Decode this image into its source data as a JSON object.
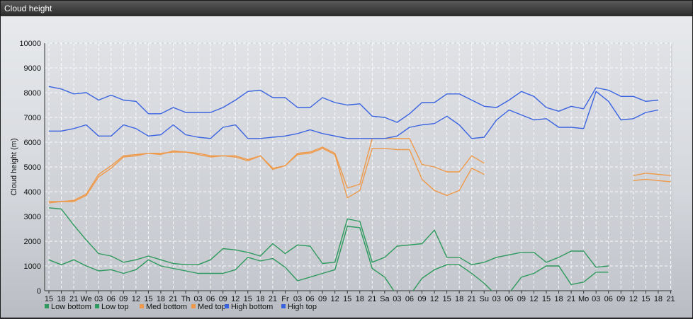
{
  "window": {
    "title": "Cloud height"
  },
  "colors": {
    "low": "#2e9a5d",
    "med": "#ef9a4a",
    "high": "#3a63e0"
  },
  "chart_data": {
    "type": "line",
    "title": "",
    "xlabel": "",
    "ylabel": "Cloud height (m)",
    "ylim": [
      0,
      10000
    ],
    "yticks": [
      0,
      1000,
      2000,
      3000,
      4000,
      5000,
      6000,
      7000,
      8000,
      9000,
      10000
    ],
    "xticklabels": [
      "15",
      "18",
      "21",
      "We",
      "03",
      "06",
      "09",
      "12",
      "15",
      "18",
      "21",
      "Th",
      "03",
      "06",
      "09",
      "12",
      "15",
      "18",
      "21",
      "Fr",
      "03",
      "06",
      "09",
      "12",
      "15",
      "18",
      "21",
      "Sa",
      "03",
      "06",
      "09",
      "12",
      "15",
      "18",
      "21",
      "Su",
      "03",
      "06",
      "09",
      "12",
      "15",
      "18",
      "21",
      "Mo",
      "03",
      "06",
      "09",
      "12",
      "15",
      "18",
      "21"
    ],
    "grid": true,
    "legend_position": "bottom",
    "series": [
      {
        "name": "Low bottom",
        "color": "#2e9a5d",
        "values": [
          1250,
          1050,
          1250,
          1000,
          800,
          850,
          700,
          850,
          1250,
          1000,
          900,
          800,
          700,
          700,
          700,
          850,
          1350,
          1200,
          1300,
          950,
          400,
          550,
          700,
          850,
          2600,
          2550,
          900,
          550,
          -200,
          -200,
          500,
          850,
          1050,
          1050,
          700,
          300,
          -200,
          -100,
          550,
          700,
          1000,
          1000,
          250,
          350,
          750,
          750,
          null,
          null,
          null,
          null,
          null
        ]
      },
      {
        "name": "Low top",
        "color": "#2e9a5d",
        "values": [
          3350,
          3300,
          2650,
          2050,
          1500,
          1400,
          1150,
          1250,
          1400,
          1250,
          1100,
          1050,
          1050,
          1250,
          1700,
          1650,
          1550,
          1400,
          1900,
          1500,
          1850,
          1800,
          1100,
          1150,
          2900,
          2800,
          1150,
          1350,
          1800,
          1850,
          1900,
          2450,
          1350,
          1350,
          1050,
          1150,
          1350,
          1450,
          1550,
          1550,
          1150,
          1350,
          1600,
          1600,
          950,
          1000,
          null,
          null,
          null,
          null,
          null
        ]
      },
      {
        "name": "Med bottom",
        "color": "#ef9a4a",
        "values": [
          3550,
          3600,
          3600,
          3850,
          4600,
          4950,
          5400,
          5450,
          5550,
          5500,
          5650,
          5600,
          5500,
          5400,
          5450,
          5400,
          5250,
          5450,
          4900,
          5050,
          5500,
          5550,
          5750,
          5500,
          3750,
          4050,
          5750,
          5750,
          5700,
          5700,
          4500,
          4050,
          3850,
          4050,
          4950,
          4700,
          null,
          null,
          null,
          null,
          null,
          null,
          null,
          null,
          null,
          null,
          null,
          4450,
          4500,
          4450,
          4400
        ]
      },
      {
        "name": "Med top",
        "color": "#ef9a4a",
        "values": [
          3600,
          3600,
          3650,
          3900,
          4700,
          5050,
          5450,
          5500,
          5550,
          5550,
          5600,
          5600,
          5550,
          5450,
          5450,
          5450,
          5300,
          5450,
          4950,
          5050,
          5550,
          5600,
          5800,
          5550,
          4150,
          4300,
          6150,
          6150,
          6150,
          6150,
          5100,
          5000,
          4800,
          4800,
          5450,
          5150,
          null,
          null,
          null,
          null,
          null,
          null,
          null,
          null,
          null,
          null,
          null,
          4650,
          4750,
          4700,
          4650
        ]
      },
      {
        "name": "High bottom",
        "color": "#3a63e0",
        "values": [
          6450,
          6450,
          6550,
          6700,
          6250,
          6250,
          6700,
          6550,
          6250,
          6300,
          6700,
          6300,
          6200,
          6150,
          6600,
          6700,
          6150,
          6150,
          6200,
          6250,
          6350,
          6500,
          6350,
          6250,
          6150,
          6150,
          6150,
          6150,
          6250,
          6600,
          6700,
          6750,
          7050,
          6700,
          6150,
          6200,
          6900,
          7300,
          7100,
          6900,
          6950,
          6600,
          6600,
          6550,
          8050,
          7650,
          6900,
          6950,
          7200,
          7300,
          null
        ]
      },
      {
        "name": "High top",
        "color": "#3a63e0",
        "values": [
          8250,
          8150,
          7950,
          8000,
          7700,
          7900,
          7700,
          7650,
          7150,
          7150,
          7400,
          7200,
          7200,
          7200,
          7400,
          7700,
          8050,
          8100,
          7800,
          7800,
          7400,
          7400,
          7800,
          7600,
          7500,
          7550,
          7050,
          7000,
          6800,
          7150,
          7600,
          7600,
          7950,
          7950,
          7700,
          7450,
          7400,
          7700,
          8050,
          7850,
          7400,
          7250,
          7450,
          7350,
          8200,
          8100,
          7850,
          7850,
          7650,
          7700,
          null
        ]
      }
    ]
  }
}
